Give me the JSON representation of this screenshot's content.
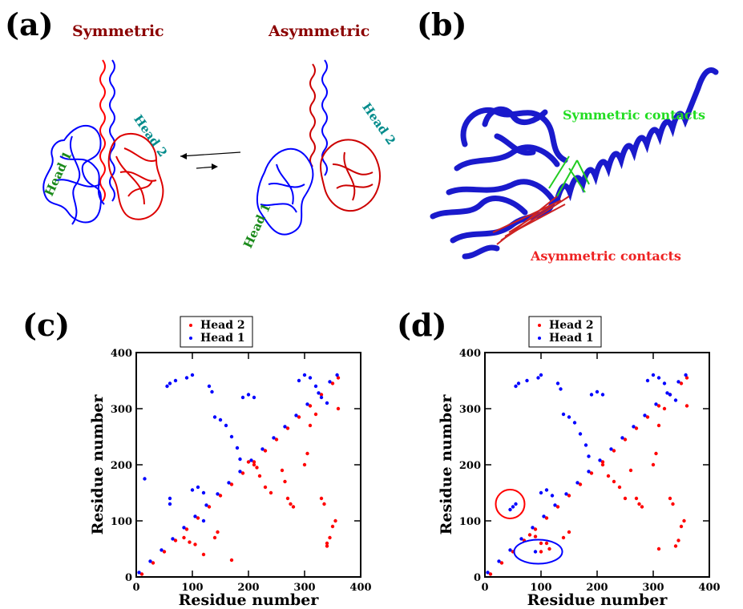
{
  "panels": {
    "a": {
      "label": "(a)",
      "symmetric_title": "Symmetric",
      "asymmetric_title": "Asymmetric",
      "head1": "Head 1",
      "head2": "Head 2"
    },
    "b": {
      "label": "(b)",
      "symmetric_contacts": "Symmetric contacts",
      "asymmetric_contacts": "Asymmetric contacts"
    },
    "c": {
      "label": "(c)"
    },
    "d": {
      "label": "(d)"
    }
  },
  "colors": {
    "head1": "#0000ff",
    "head2": "#ff0000",
    "dark_red": "#8b0000",
    "green": "#00cc00",
    "teal": "#008b8b",
    "head_label_green": "#1a8a1a"
  },
  "chart_data": [
    {
      "type": "scatter",
      "panel": "c",
      "xlabel": "Residue number",
      "ylabel": "Residue number",
      "xlim": [
        0,
        400
      ],
      "ylim": [
        0,
        400
      ],
      "x_ticks": [
        "0",
        "100",
        "200",
        "300",
        "400"
      ],
      "y_ticks": [
        "0",
        "100",
        "200",
        "300",
        "400"
      ],
      "legend": "top-center",
      "series": [
        {
          "name": "Head 2",
          "color": "#ff0000",
          "points": [
            [
              10,
              5
            ],
            [
              30,
              25
            ],
            [
              50,
              45
            ],
            [
              70,
              65
            ],
            [
              90,
              85
            ],
            [
              110,
              105
            ],
            [
              130,
              125
            ],
            [
              150,
              145
            ],
            [
              170,
              165
            ],
            [
              190,
              185
            ],
            [
              210,
              205
            ],
            [
              230,
              225
            ],
            [
              250,
              245
            ],
            [
              270,
              265
            ],
            [
              290,
              285
            ],
            [
              310,
              305
            ],
            [
              330,
              325
            ],
            [
              350,
              345
            ],
            [
              360,
              355
            ],
            [
              85,
              70
            ],
            [
              95,
              62
            ],
            [
              105,
              58
            ],
            [
              120,
              40
            ],
            [
              140,
              70
            ],
            [
              145,
              80
            ],
            [
              170,
              30
            ],
            [
              200,
              205
            ],
            [
              210,
              200
            ],
            [
              215,
              195
            ],
            [
              220,
              180
            ],
            [
              230,
              160
            ],
            [
              240,
              150
            ],
            [
              260,
              190
            ],
            [
              265,
              170
            ],
            [
              270,
              140
            ],
            [
              275,
              130
            ],
            [
              280,
              125
            ],
            [
              300,
              200
            ],
            [
              305,
              220
            ],
            [
              310,
              270
            ],
            [
              320,
              290
            ],
            [
              330,
              140
            ],
            [
              335,
              130
            ],
            [
              340,
              60
            ],
            [
              345,
              70
            ],
            [
              350,
              90
            ],
            [
              355,
              100
            ],
            [
              360,
              300
            ],
            [
              340,
              55
            ]
          ]
        },
        {
          "name": "Head 1",
          "color": "#0000ff",
          "points": [
            [
              5,
              8
            ],
            [
              25,
              28
            ],
            [
              45,
              48
            ],
            [
              65,
              68
            ],
            [
              85,
              88
            ],
            [
              105,
              108
            ],
            [
              125,
              128
            ],
            [
              145,
              148
            ],
            [
              165,
              168
            ],
            [
              185,
              188
            ],
            [
              205,
              208
            ],
            [
              225,
              228
            ],
            [
              245,
              248
            ],
            [
              265,
              268
            ],
            [
              285,
              288
            ],
            [
              305,
              308
            ],
            [
              325,
              328
            ],
            [
              345,
              348
            ],
            [
              358,
              360
            ],
            [
              15,
              175
            ],
            [
              55,
              340
            ],
            [
              60,
              345
            ],
            [
              70,
              350
            ],
            [
              90,
              355
            ],
            [
              100,
              360
            ],
            [
              130,
              340
            ],
            [
              135,
              330
            ],
            [
              140,
              285
            ],
            [
              150,
              280
            ],
            [
              160,
              270
            ],
            [
              170,
              250
            ],
            [
              180,
              230
            ],
            [
              185,
              210
            ],
            [
              190,
              320
            ],
            [
              200,
              325
            ],
            [
              210,
              320
            ],
            [
              100,
              155
            ],
            [
              110,
              160
            ],
            [
              120,
              150
            ],
            [
              120,
              100
            ],
            [
              60,
              130
            ],
            [
              60,
              140
            ],
            [
              290,
              350
            ],
            [
              300,
              360
            ],
            [
              310,
              355
            ],
            [
              320,
              340
            ],
            [
              330,
              320
            ],
            [
              340,
              310
            ]
          ]
        }
      ]
    },
    {
      "type": "scatter",
      "panel": "d",
      "xlabel": "Residue number",
      "ylabel": "Residue number",
      "xlim": [
        0,
        400
      ],
      "ylim": [
        0,
        400
      ],
      "x_ticks": [
        "0",
        "100",
        "200",
        "300",
        "400"
      ],
      "y_ticks": [
        "0",
        "100",
        "200",
        "300",
        "400"
      ],
      "legend": "top-center",
      "series": [
        {
          "name": "Head 2",
          "color": "#ff0000",
          "points": [
            [
              10,
              5
            ],
            [
              30,
              25
            ],
            [
              50,
              45
            ],
            [
              70,
              65
            ],
            [
              90,
              85
            ],
            [
              110,
              105
            ],
            [
              130,
              125
            ],
            [
              150,
              145
            ],
            [
              170,
              165
            ],
            [
              190,
              185
            ],
            [
              210,
              205
            ],
            [
              230,
              225
            ],
            [
              250,
              245
            ],
            [
              270,
              265
            ],
            [
              290,
              285
            ],
            [
              310,
              305
            ],
            [
              330,
              325
            ],
            [
              350,
              345
            ],
            [
              360,
              355
            ],
            [
              80,
              75
            ],
            [
              90,
              72
            ],
            [
              100,
              45
            ],
            [
              100,
              60
            ],
            [
              110,
              60
            ],
            [
              115,
              50
            ],
            [
              140,
              70
            ],
            [
              150,
              80
            ],
            [
              210,
              200
            ],
            [
              220,
              180
            ],
            [
              230,
              170
            ],
            [
              240,
              160
            ],
            [
              250,
              140
            ],
            [
              260,
              190
            ],
            [
              270,
              140
            ],
            [
              275,
              130
            ],
            [
              280,
              125
            ],
            [
              300,
              200
            ],
            [
              305,
              220
            ],
            [
              310,
              270
            ],
            [
              320,
              300
            ],
            [
              330,
              140
            ],
            [
              335,
              130
            ],
            [
              340,
              55
            ],
            [
              345,
              65
            ],
            [
              350,
              90
            ],
            [
              355,
              100
            ],
            [
              360,
              305
            ],
            [
              310,
              50
            ]
          ]
        },
        {
          "name": "Head 1",
          "color": "#0000ff",
          "points": [
            [
              5,
              8
            ],
            [
              25,
              28
            ],
            [
              45,
              48
            ],
            [
              65,
              68
            ],
            [
              85,
              88
            ],
            [
              105,
              108
            ],
            [
              125,
              128
            ],
            [
              145,
              148
            ],
            [
              165,
              168
            ],
            [
              185,
              188
            ],
            [
              205,
              208
            ],
            [
              225,
              228
            ],
            [
              245,
              248
            ],
            [
              265,
              268
            ],
            [
              285,
              288
            ],
            [
              305,
              308
            ],
            [
              325,
              328
            ],
            [
              345,
              348
            ],
            [
              358,
              360
            ],
            [
              45,
              120
            ],
            [
              50,
              125
            ],
            [
              55,
              130
            ],
            [
              55,
              340
            ],
            [
              60,
              345
            ],
            [
              75,
              350
            ],
            [
              95,
              355
            ],
            [
              100,
              360
            ],
            [
              130,
              345
            ],
            [
              135,
              335
            ],
            [
              140,
              290
            ],
            [
              150,
              285
            ],
            [
              160,
              275
            ],
            [
              170,
              255
            ],
            [
              180,
              235
            ],
            [
              185,
              215
            ],
            [
              190,
              325
            ],
            [
              200,
              330
            ],
            [
              210,
              325
            ],
            [
              90,
              45
            ],
            [
              100,
              150
            ],
            [
              110,
              155
            ],
            [
              120,
              145
            ],
            [
              290,
              350
            ],
            [
              300,
              360
            ],
            [
              310,
              355
            ],
            [
              320,
              345
            ],
            [
              330,
              325
            ],
            [
              340,
              315
            ]
          ]
        }
      ],
      "annotations": [
        {
          "shape": "ellipse",
          "color": "#ff0000",
          "cx": 45,
          "cy": 130,
          "rx": 18,
          "ry": 18
        },
        {
          "shape": "ellipse",
          "color": "#0000ff",
          "cx": 95,
          "cy": 45,
          "rx": 30,
          "ry": 15
        }
      ]
    }
  ]
}
